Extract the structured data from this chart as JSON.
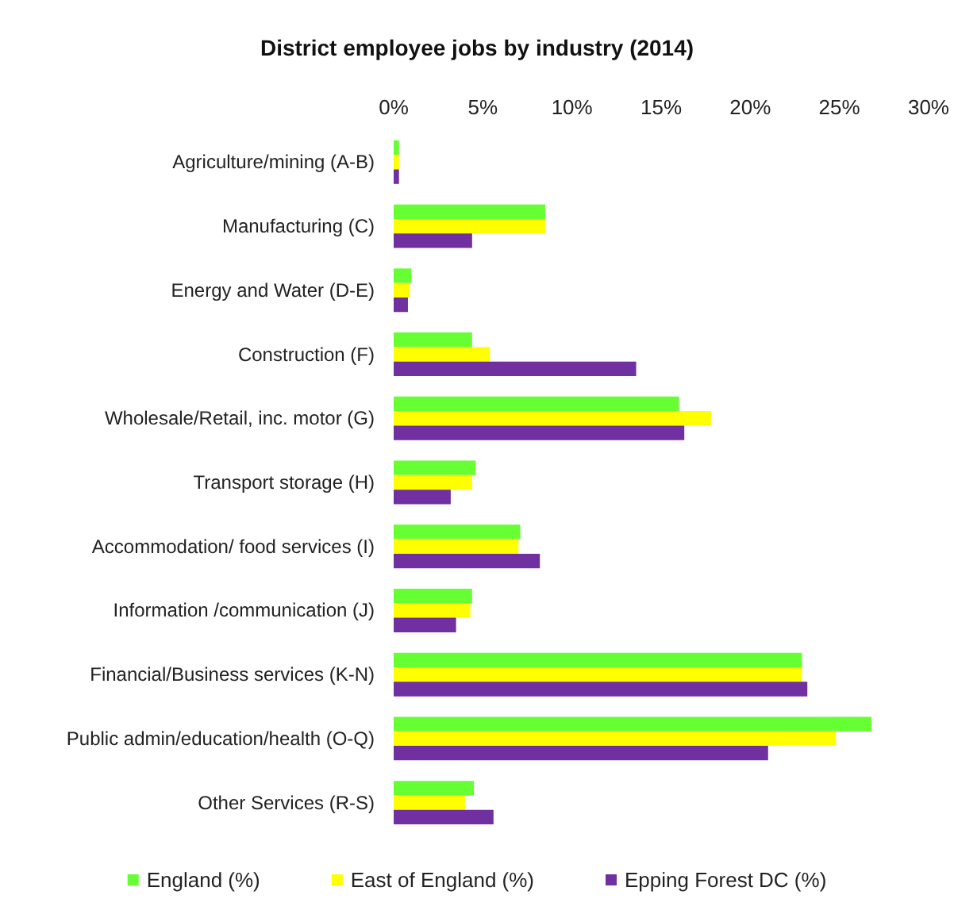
{
  "chart_data": {
    "type": "bar",
    "orientation": "horizontal",
    "title": "District employee jobs by industry (2014)",
    "categories": [
      "Agriculture/mining (A-B)",
      "Manufacturing (C)",
      "Energy and Water (D-E)",
      "Construction (F)",
      "Wholesale/Retail, inc. motor (G)",
      "Transport storage (H)",
      "Accommodation/ food services (I)",
      "Information /communication (J)",
      "Financial/Business services (K-N)",
      "Public admin/education/health (O-Q)",
      "Other Services (R-S)"
    ],
    "series": [
      {
        "name": "England (%)",
        "color": "#66ff33",
        "values": [
          0.3,
          8.5,
          1.0,
          4.4,
          16.0,
          4.6,
          7.1,
          4.4,
          22.9,
          26.8,
          4.5
        ]
      },
      {
        "name": "East of England (%)",
        "color": "#ffff00",
        "values": [
          0.3,
          8.5,
          0.9,
          5.4,
          17.8,
          4.4,
          7.0,
          4.3,
          22.9,
          24.8,
          4.0
        ]
      },
      {
        "name": "Epping Forest DC (%)",
        "color": "#7030a0",
        "values": [
          0.3,
          4.4,
          0.8,
          13.6,
          16.3,
          3.2,
          8.2,
          3.5,
          23.2,
          21.0,
          5.6
        ]
      }
    ],
    "xlim": [
      0,
      30
    ],
    "xticks": [
      {
        "value": 0,
        "label": "0%"
      },
      {
        "value": 5,
        "label": "5%"
      },
      {
        "value": 10,
        "label": "10%"
      },
      {
        "value": 15,
        "label": "15%"
      },
      {
        "value": 20,
        "label": "20%"
      },
      {
        "value": 25,
        "label": "25%"
      },
      {
        "value": 30,
        "label": "30%"
      }
    ],
    "grid": false,
    "legend": "bottom"
  }
}
